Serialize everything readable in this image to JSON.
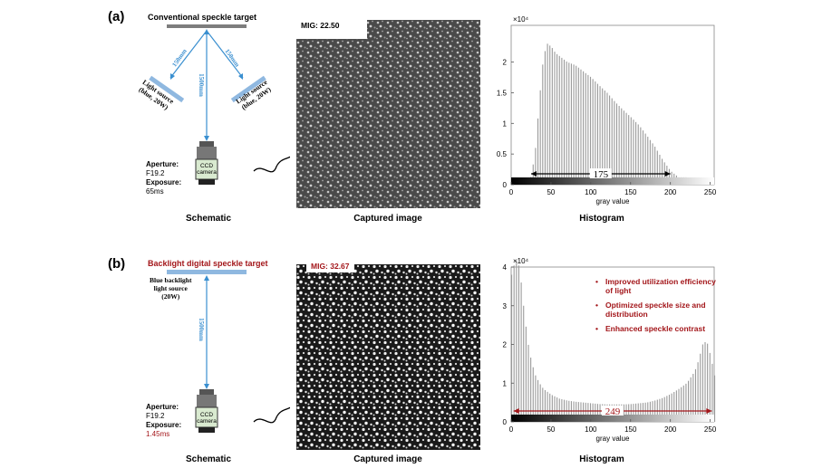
{
  "panel_a": {
    "label": "(a)",
    "schematic": {
      "target_title": "Conventional speckle target",
      "dist_left": "150mm",
      "dist_right": "150mm",
      "dist_center": "1500mm",
      "light_left": [
        "Light source",
        "(blue, 20W)"
      ],
      "light_right": [
        "Light source",
        "(blue, 20W)"
      ],
      "camera_label": [
        "CCD",
        "camera"
      ],
      "aperture_key": "Aperture:",
      "aperture_val": "F19.2",
      "exposure_key": "Exposure:",
      "exposure_val": "65ms",
      "caption": "Schematic"
    },
    "image": {
      "mig": "MIG: 22.50",
      "caption": "Captured image"
    },
    "histogram": {
      "caption": "Histogram",
      "annotation": "175"
    }
  },
  "panel_b": {
    "label": "(b)",
    "schematic": {
      "target_title": "Backlight digital speckle target",
      "light_label": [
        "Blue backlight",
        "light source",
        "(20W)"
      ],
      "dist_center": "1500mm",
      "camera_label": [
        "CCD",
        "camera"
      ],
      "aperture_key": "Aperture:",
      "aperture_val": "F19.2",
      "exposure_key": "Exposure:",
      "exposure_val": "1.45ms",
      "caption": "Schematic"
    },
    "image": {
      "mig": "MIG: 32.67",
      "caption": "Captured image"
    },
    "histogram": {
      "caption": "Histogram",
      "annotation": "249",
      "bullets": [
        "Improved utilization efficiency of light",
        "Optimized speckle size and distribution",
        "Enhanced speckle contrast"
      ]
    }
  },
  "chart_data": [
    {
      "type": "bar",
      "x_multiplier": "×10⁴",
      "xlabel": "gray value",
      "ylabel": "",
      "xlim": [
        0,
        255
      ],
      "ylim": [
        0,
        2.6
      ],
      "xticks": [
        0,
        50,
        100,
        150,
        200,
        250
      ],
      "yticks": [
        0,
        0.5,
        1,
        1.5,
        2
      ],
      "x": [
        0,
        10,
        20,
        25,
        30,
        35,
        40,
        45,
        50,
        55,
        60,
        65,
        70,
        80,
        90,
        100,
        110,
        120,
        130,
        140,
        150,
        160,
        170,
        180,
        190,
        200,
        210,
        220,
        230,
        240,
        250,
        255
      ],
      "values": [
        0,
        0,
        0.03,
        0.15,
        0.6,
        1.4,
        2.1,
        2.3,
        2.25,
        2.15,
        2.1,
        2.05,
        2.0,
        1.95,
        1.85,
        1.75,
        1.62,
        1.5,
        1.35,
        1.22,
        1.1,
        0.97,
        0.8,
        0.62,
        0.4,
        0.22,
        0.12,
        0.12,
        0.06,
        0.02,
        0,
        0
      ],
      "annotation": {
        "text": "175",
        "from": 25,
        "to": 200
      }
    },
    {
      "type": "bar",
      "x_multiplier": "×10⁴",
      "xlabel": "gray value",
      "ylabel": "",
      "xlim": [
        0,
        255
      ],
      "ylim": [
        0,
        4
      ],
      "xticks": [
        0,
        50,
        100,
        150,
        200,
        250
      ],
      "yticks": [
        0,
        1,
        2,
        3,
        4
      ],
      "x": [
        0,
        5,
        10,
        15,
        20,
        25,
        30,
        35,
        40,
        50,
        60,
        70,
        80,
        90,
        100,
        110,
        120,
        130,
        140,
        150,
        160,
        170,
        180,
        190,
        200,
        210,
        220,
        230,
        235,
        240,
        245,
        250,
        255
      ],
      "values": [
        3.8,
        4.2,
        4.0,
        3.0,
        2.1,
        1.55,
        1.2,
        1.0,
        0.85,
        0.7,
        0.6,
        0.55,
        0.52,
        0.5,
        0.48,
        0.46,
        0.45,
        0.45,
        0.45,
        0.46,
        0.48,
        0.5,
        0.55,
        0.62,
        0.72,
        0.85,
        1.0,
        1.3,
        1.6,
        2.0,
        2.1,
        1.7,
        1.2
      ],
      "annotation": {
        "text": "249",
        "from": 3,
        "to": 252
      }
    }
  ]
}
